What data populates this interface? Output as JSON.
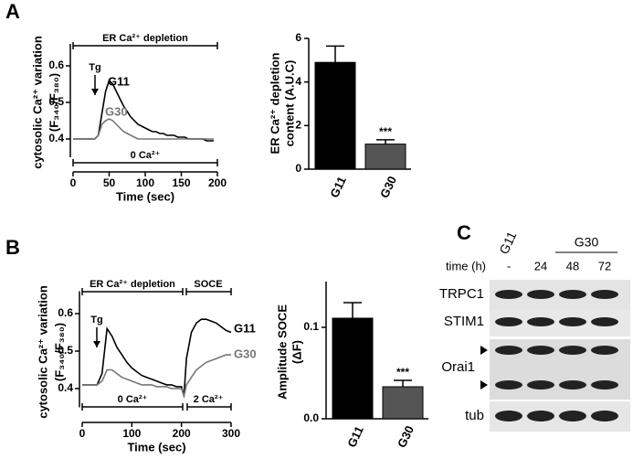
{
  "panels": [
    "A",
    "B",
    "C"
  ],
  "chart_data": [
    {
      "type": "line",
      "y_label": [
        "cytosolic Ca²⁺ variation",
        "(F₃₄₀/F₃₈₀)"
      ],
      "x_label": "Time (sec)",
      "annotations": [
        "ER Ca²⁺ depletion",
        "Tg",
        "0 Ca²⁺"
      ],
      "x": [
        0,
        5,
        10,
        15,
        20,
        25,
        30,
        35,
        40,
        45,
        50,
        55,
        60,
        65,
        70,
        75,
        80,
        85,
        90,
        95,
        100,
        105,
        110,
        115,
        120,
        125,
        130,
        135,
        140,
        145,
        150,
        155,
        160,
        165,
        170,
        175,
        180,
        185,
        190,
        195
      ],
      "series": [
        {
          "name": "G11",
          "color": "#000000",
          "values": [
            0.4,
            0.4,
            0.4,
            0.4,
            0.4,
            0.4,
            0.4,
            0.41,
            0.47,
            0.53,
            0.56,
            0.55,
            0.53,
            0.51,
            0.49,
            0.475,
            0.46,
            0.45,
            0.44,
            0.435,
            0.43,
            0.425,
            0.42,
            0.42,
            0.415,
            0.415,
            0.41,
            0.41,
            0.41,
            0.405,
            0.405,
            0.405,
            0.4,
            0.4,
            0.4,
            0.4,
            0.4,
            0.395,
            0.395,
            0.395
          ]
        },
        {
          "name": "G30",
          "color": "#777777",
          "values": [
            0.4,
            0.4,
            0.4,
            0.4,
            0.4,
            0.4,
            0.4,
            0.41,
            0.44,
            0.45,
            0.455,
            0.45,
            0.44,
            0.43,
            0.42,
            0.415,
            0.41,
            0.405,
            0.4,
            0.4,
            0.4,
            0.4,
            0.4,
            0.4,
            0.4,
            0.4,
            0.4,
            0.4,
            0.4,
            0.4,
            0.4,
            0.4,
            0.4,
            0.4,
            0.4,
            0.4,
            0.4,
            0.4,
            0.4,
            0.4
          ]
        }
      ],
      "xlim": [
        0,
        200
      ],
      "xticks": [
        0,
        50,
        100,
        150,
        200
      ],
      "ylim": [
        0.35,
        0.65
      ],
      "yticks": [
        0.4,
        0.5,
        0.6
      ]
    },
    {
      "type": "bar",
      "y_label": [
        "ER Ca²⁺ depletion",
        "content (A.U.C)"
      ],
      "annotations": [
        "***"
      ],
      "categories": [
        "G11",
        "G30"
      ],
      "values": [
        4.9,
        1.15
      ],
      "errors": [
        0.75,
        0.2
      ],
      "colors": [
        "#000000",
        "#555555"
      ],
      "ylim": [
        0,
        6
      ],
      "yticks": [
        0,
        2,
        4,
        6
      ]
    },
    {
      "type": "line",
      "y_label": [
        "cytosolic Ca²⁺ variation",
        "(F₃₄₀/F₃₈₀)"
      ],
      "x_label": "Time (sec)",
      "annotations": [
        "ER Ca²⁺ depletion",
        "SOCE",
        "Tg",
        "0 Ca²⁺",
        "2 Ca²⁺"
      ],
      "x": [
        0,
        10,
        20,
        30,
        40,
        50,
        60,
        70,
        80,
        90,
        100,
        110,
        120,
        130,
        140,
        150,
        160,
        170,
        180,
        190,
        200,
        205,
        210,
        220,
        230,
        240,
        250,
        260,
        270,
        280,
        290,
        300
      ],
      "series": [
        {
          "name": "G11",
          "color": "#000000",
          "values": [
            0.41,
            0.41,
            0.41,
            0.41,
            0.44,
            0.56,
            0.54,
            0.51,
            0.49,
            0.47,
            0.455,
            0.445,
            0.435,
            0.43,
            0.425,
            0.42,
            0.415,
            0.41,
            0.41,
            0.405,
            0.405,
            0.38,
            0.48,
            0.55,
            0.575,
            0.585,
            0.585,
            0.58,
            0.575,
            0.565,
            0.555,
            0.55
          ]
        },
        {
          "name": "G30",
          "color": "#777777",
          "values": [
            0.41,
            0.41,
            0.41,
            0.41,
            0.42,
            0.45,
            0.45,
            0.44,
            0.43,
            0.425,
            0.42,
            0.415,
            0.41,
            0.41,
            0.41,
            0.405,
            0.405,
            0.405,
            0.4,
            0.4,
            0.4,
            0.38,
            0.41,
            0.43,
            0.45,
            0.46,
            0.47,
            0.475,
            0.48,
            0.485,
            0.49,
            0.49
          ]
        }
      ],
      "xlim": [
        0,
        300
      ],
      "xticks": [
        0,
        100,
        200,
        300
      ],
      "ylim": [
        0.35,
        0.65
      ],
      "yticks": [
        0.4,
        0.5,
        0.6
      ]
    },
    {
      "type": "bar",
      "y_label": [
        "Amplitude SOCE",
        "(ΔF)"
      ],
      "annotations": [
        "***"
      ],
      "categories": [
        "G11",
        "G30"
      ],
      "values": [
        0.11,
        0.035
      ],
      "errors": [
        0.017,
        0.007
      ],
      "colors": [
        "#000000",
        "#555555"
      ],
      "ylim": [
        0,
        0.15
      ],
      "yticks": [
        {
          "value": 0,
          "label": "0.0"
        },
        {
          "value": 0.1,
          "label": "0.1"
        }
      ]
    }
  ],
  "blot": {
    "group_labels": [
      "G11",
      "G30"
    ],
    "time_label": "time (h)",
    "times": [
      "-",
      "24",
      "48",
      "72"
    ],
    "rows": [
      "TRPC1",
      "STIM1",
      "Orai1",
      "tub"
    ]
  }
}
